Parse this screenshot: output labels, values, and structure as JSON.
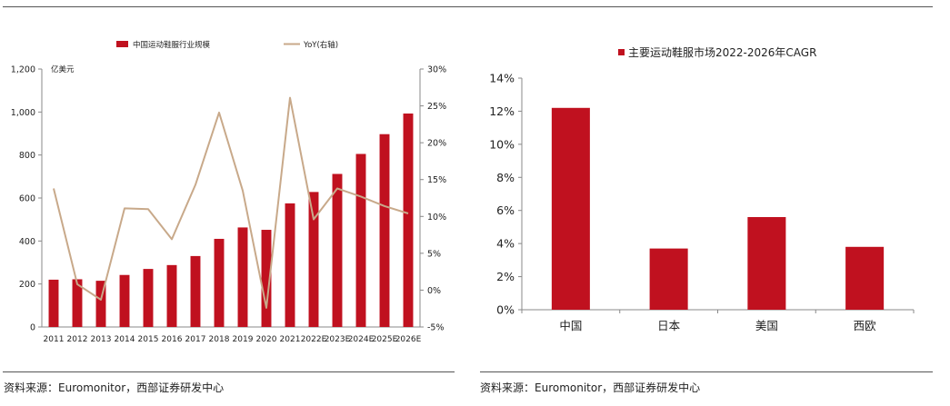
{
  "colors": {
    "bar": "#C0111F",
    "line": "#C8A98A",
    "axis": "#888888",
    "rule": "#555555"
  },
  "chart_data": [
    {
      "type": "bar",
      "categories": [
        "2011",
        "2012",
        "2013",
        "2014",
        "2015",
        "2016",
        "2017",
        "2018",
        "2019",
        "2020",
        "2021",
        "2022E",
        "2023E",
        "2024E",
        "2025E",
        "2026E"
      ],
      "series": [
        {
          "name": "中国运动鞋服行业规模",
          "type": "bar",
          "axis": "left",
          "values": [
            220,
            222,
            215,
            242,
            270,
            288,
            330,
            410,
            463,
            452,
            575,
            628,
            712,
            805,
            897,
            993
          ]
        },
        {
          "name": "YoY(右轴)",
          "type": "line",
          "axis": "right",
          "values": [
            13.8,
            0.8,
            -1.3,
            11.1,
            11.0,
            6.9,
            14.3,
            24.1,
            13.5,
            -2.4,
            26.1,
            9.6,
            13.8,
            12.7,
            11.4,
            10.4
          ]
        }
      ],
      "ylabel": "亿美元",
      "ylim": [
        0,
        1200
      ],
      "yticks": [
        "0",
        "200",
        "400",
        "600",
        "800",
        "1,000",
        "1,200"
      ],
      "y2lim": [
        -5,
        30
      ],
      "y2ticks": [
        "-5%",
        "0%",
        "5%",
        "10%",
        "15%",
        "20%",
        "25%",
        "30%"
      ],
      "legend": "top"
    },
    {
      "type": "bar",
      "title": "主要运动鞋服市场2022-2026年CAGR",
      "categories": [
        "中国",
        "日本",
        "美国",
        "西欧"
      ],
      "values": [
        12.2,
        3.7,
        5.6,
        3.8
      ],
      "ylim": [
        0,
        14
      ],
      "yticks": [
        "0%",
        "2%",
        "4%",
        "6%",
        "8%",
        "10%",
        "12%",
        "14%"
      ],
      "legend": "top"
    }
  ],
  "sources": {
    "left": "资料来源：Euromonitor，西部证券研发中心",
    "right": "资料来源：Euromonitor，西部证券研发中心"
  }
}
